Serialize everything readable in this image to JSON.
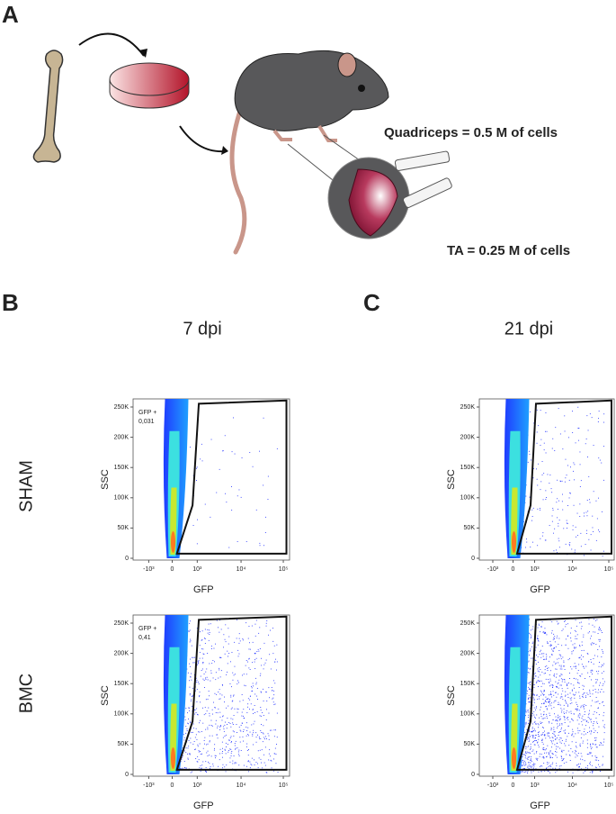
{
  "panels": {
    "A": {
      "label": "A",
      "annotations": [
        "Quadriceps = 0.5 M of cells",
        "TA = 0.25 M of cells"
      ]
    },
    "B": {
      "label": "B",
      "title": "7 dpi"
    },
    "C": {
      "label": "C",
      "title": "21 dpi"
    }
  },
  "row_labels": [
    "SHAM",
    "BMC"
  ],
  "axes": {
    "x_label": "GFP",
    "y_label": "SSC",
    "yticks": [
      "0",
      "50K",
      "100K",
      "150K",
      "200K",
      "250K"
    ],
    "xticks": [
      "-10³",
      "0",
      "10³",
      "10⁴",
      "10⁵"
    ]
  },
  "gates": [
    {
      "label": "GFP +",
      "value": "0,031"
    },
    {
      "label": "GFP +",
      "value": "0,41"
    }
  ]
}
